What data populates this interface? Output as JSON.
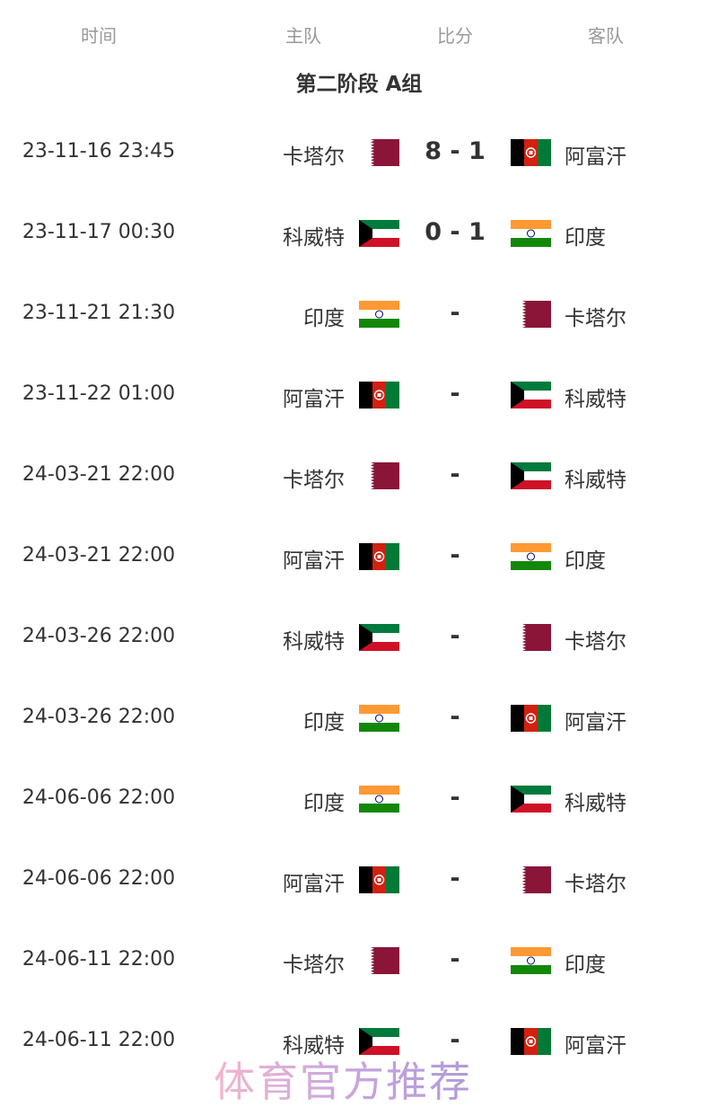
{
  "header": {
    "time": "时间",
    "home": "主队",
    "score": "比分",
    "away": "客队"
  },
  "group_title": "第二阶段 A组",
  "flag_colors": {
    "qatar": "#8a1538",
    "afghanistan": [
      "#000000",
      "#d32011",
      "#007a36"
    ],
    "kuwait": [
      "#007a3d",
      "#ffffff",
      "#ce1126",
      "#000000"
    ],
    "india": [
      "#ff9933",
      "#ffffff",
      "#138808",
      "#000080"
    ]
  },
  "matches": [
    {
      "time": "23-11-16 23:45",
      "home": "卡塔尔",
      "home_flag": "qatar",
      "score": "8 - 1",
      "away": "阿富汗",
      "away_flag": "afghanistan"
    },
    {
      "time": "23-11-17 00:30",
      "home": "科威特",
      "home_flag": "kuwait",
      "score": "0 - 1",
      "away": "印度",
      "away_flag": "india"
    },
    {
      "time": "23-11-21 21:30",
      "home": "印度",
      "home_flag": "india",
      "score": "-",
      "away": "卡塔尔",
      "away_flag": "qatar"
    },
    {
      "time": "23-11-22 01:00",
      "home": "阿富汗",
      "home_flag": "afghanistan",
      "score": "-",
      "away": "科威特",
      "away_flag": "kuwait"
    },
    {
      "time": "24-03-21 22:00",
      "home": "卡塔尔",
      "home_flag": "qatar",
      "score": "-",
      "away": "科威特",
      "away_flag": "kuwait"
    },
    {
      "time": "24-03-21 22:00",
      "home": "阿富汗",
      "home_flag": "afghanistan",
      "score": "-",
      "away": "印度",
      "away_flag": "india"
    },
    {
      "time": "24-03-26 22:00",
      "home": "科威特",
      "home_flag": "kuwait",
      "score": "-",
      "away": "卡塔尔",
      "away_flag": "qatar"
    },
    {
      "time": "24-03-26 22:00",
      "home": "印度",
      "home_flag": "india",
      "score": "-",
      "away": "阿富汗",
      "away_flag": "afghanistan"
    },
    {
      "time": "24-06-06 22:00",
      "home": "印度",
      "home_flag": "india",
      "score": "-",
      "away": "科威特",
      "away_flag": "kuwait"
    },
    {
      "time": "24-06-06 22:00",
      "home": "阿富汗",
      "home_flag": "afghanistan",
      "score": "-",
      "away": "卡塔尔",
      "away_flag": "qatar"
    },
    {
      "time": "24-06-11 22:00",
      "home": "卡塔尔",
      "home_flag": "qatar",
      "score": "-",
      "away": "印度",
      "away_flag": "india"
    },
    {
      "time": "24-06-11 22:00",
      "home": "科威特",
      "home_flag": "kuwait",
      "score": "-",
      "away": "阿富汗",
      "away_flag": "afghanistan"
    }
  ],
  "watermark": "体育官方推荐"
}
